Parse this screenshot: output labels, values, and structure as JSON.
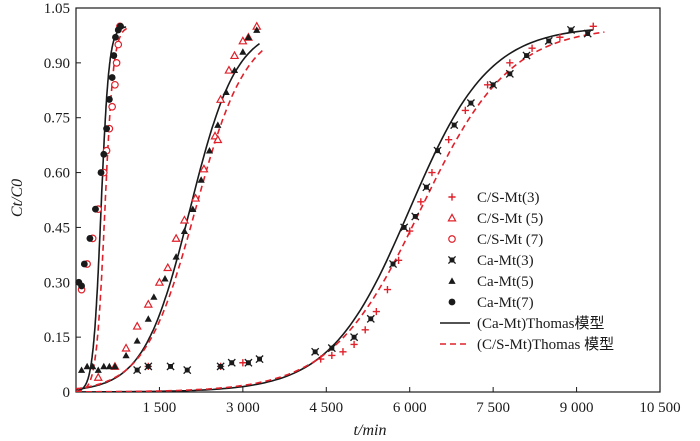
{
  "chart_data": {
    "type": "scatter",
    "xlabel": "t/min",
    "ylabel": "Ct/C0",
    "xlim": [
      0,
      10500
    ],
    "ylim": [
      0,
      1.05
    ],
    "x_ticks": [
      1500,
      3000,
      4500,
      6000,
      7500,
      9000,
      10500
    ],
    "x_tick_labels": [
      "1 500",
      "3 000",
      "4 500",
      "6 000",
      "7 500",
      "9 000",
      "10 500"
    ],
    "y_ticks": [
      0,
      0.15,
      0.3,
      0.45,
      0.6,
      0.75,
      0.9,
      1.05
    ],
    "y_tick_labels": [
      "0",
      "0.15",
      "0.30",
      "0.45",
      "0.60",
      "0.75",
      "0.90",
      "1.05"
    ],
    "legend_position": "right",
    "series": [
      {
        "name": "C/S-Mt(3)",
        "marker": "plus",
        "color": "#e0202a",
        "points": [
          [
            1300,
            0.07
          ],
          [
            2600,
            0.07
          ],
          [
            3000,
            0.08
          ],
          [
            4400,
            0.09
          ],
          [
            4600,
            0.1
          ],
          [
            4800,
            0.11
          ],
          [
            5000,
            0.13
          ],
          [
            5200,
            0.17
          ],
          [
            5400,
            0.22
          ],
          [
            5600,
            0.28
          ],
          [
            5800,
            0.36
          ],
          [
            6000,
            0.44
          ],
          [
            6200,
            0.52
          ],
          [
            6400,
            0.6
          ],
          [
            6700,
            0.69
          ],
          [
            7000,
            0.77
          ],
          [
            7400,
            0.84
          ],
          [
            7800,
            0.9
          ],
          [
            8200,
            0.94
          ],
          [
            8700,
            0.97
          ],
          [
            9300,
            1.0
          ]
        ]
      },
      {
        "name": "C/S-Mt (5)",
        "marker": "triangle-open",
        "color": "#e0202a",
        "points": [
          [
            400,
            0.04
          ],
          [
            700,
            0.07
          ],
          [
            900,
            0.12
          ],
          [
            1100,
            0.18
          ],
          [
            1300,
            0.24
          ],
          [
            1500,
            0.3
          ],
          [
            1650,
            0.34
          ],
          [
            1800,
            0.42
          ],
          [
            1950,
            0.47
          ],
          [
            2150,
            0.53
          ],
          [
            2300,
            0.61
          ],
          [
            2500,
            0.7
          ],
          [
            2550,
            0.69
          ],
          [
            2600,
            0.8
          ],
          [
            2750,
            0.88
          ],
          [
            2850,
            0.92
          ],
          [
            3000,
            0.96
          ],
          [
            3100,
            0.97
          ],
          [
            3250,
            1.0
          ]
        ]
      },
      {
        "name": "C/S-Mt (7)",
        "marker": "circle-open",
        "color": "#e0202a",
        "points": [
          [
            100,
            0.28
          ],
          [
            200,
            0.35
          ],
          [
            300,
            0.42
          ],
          [
            400,
            0.5
          ],
          [
            500,
            0.6
          ],
          [
            550,
            0.66
          ],
          [
            600,
            0.72
          ],
          [
            650,
            0.78
          ],
          [
            700,
            0.84
          ],
          [
            730,
            0.9
          ],
          [
            760,
            0.95
          ],
          [
            790,
            1.0
          ]
        ]
      },
      {
        "name": "Ca-Mt(3)",
        "marker": "x-square",
        "color": "#1a1a1a",
        "points": [
          [
            1100,
            0.06
          ],
          [
            1300,
            0.07
          ],
          [
            1700,
            0.07
          ],
          [
            2000,
            0.06
          ],
          [
            2600,
            0.07
          ],
          [
            2800,
            0.08
          ],
          [
            3100,
            0.08
          ],
          [
            3300,
            0.09
          ],
          [
            4300,
            0.11
          ],
          [
            4600,
            0.12
          ],
          [
            5000,
            0.15
          ],
          [
            5300,
            0.2
          ],
          [
            5700,
            0.35
          ],
          [
            5900,
            0.45
          ],
          [
            6100,
            0.48
          ],
          [
            6300,
            0.56
          ],
          [
            6500,
            0.66
          ],
          [
            6800,
            0.73
          ],
          [
            7100,
            0.79
          ],
          [
            7500,
            0.84
          ],
          [
            7800,
            0.87
          ],
          [
            8100,
            0.92
          ],
          [
            8500,
            0.96
          ],
          [
            8900,
            0.99
          ],
          [
            9200,
            0.98
          ]
        ]
      },
      {
        "name": "Ca-Mt(5)",
        "marker": "triangle-filled",
        "color": "#1a1a1a",
        "points": [
          [
            100,
            0.06
          ],
          [
            200,
            0.07
          ],
          [
            300,
            0.07
          ],
          [
            400,
            0.06
          ],
          [
            500,
            0.07
          ],
          [
            600,
            0.07
          ],
          [
            700,
            0.07
          ],
          [
            900,
            0.1
          ],
          [
            1100,
            0.14
          ],
          [
            1300,
            0.2
          ],
          [
            1400,
            0.26
          ],
          [
            1600,
            0.31
          ],
          [
            1800,
            0.37
          ],
          [
            1950,
            0.44
          ],
          [
            2100,
            0.5
          ],
          [
            2250,
            0.58
          ],
          [
            2400,
            0.66
          ],
          [
            2550,
            0.73
          ],
          [
            2700,
            0.82
          ],
          [
            2850,
            0.88
          ],
          [
            3000,
            0.93
          ],
          [
            3100,
            0.97
          ],
          [
            3250,
            0.99
          ]
        ]
      },
      {
        "name": "Ca-Mt(7)",
        "marker": "circle-filled",
        "color": "#1a1a1a",
        "points": [
          [
            50,
            0.3
          ],
          [
            100,
            0.29
          ],
          [
            150,
            0.35
          ],
          [
            250,
            0.42
          ],
          [
            350,
            0.5
          ],
          [
            450,
            0.6
          ],
          [
            500,
            0.65
          ],
          [
            550,
            0.72
          ],
          [
            600,
            0.8
          ],
          [
            650,
            0.86
          ],
          [
            680,
            0.92
          ],
          [
            710,
            0.97
          ],
          [
            760,
            0.99
          ],
          [
            800,
            1.0
          ]
        ]
      }
    ],
    "fit_curves": [
      {
        "name": "(Ca-Mt)Thomas模型",
        "style": "solid",
        "color": "#1a1a1a",
        "model": "thomas",
        "params": [
          [
            0.014,
            450
          ],
          [
            0.0024,
            2050
          ],
          [
            0.0014,
            6000
          ]
        ],
        "x_ranges": [
          [
            0,
            900
          ],
          [
            0,
            3300
          ],
          [
            0,
            9300
          ]
        ]
      },
      {
        "name": "(C/S-Mt)Thomas 模型",
        "style": "dashed",
        "color": "#e0202a",
        "model": "thomas",
        "params": [
          [
            0.013,
            520
          ],
          [
            0.0022,
            2150
          ],
          [
            0.00125,
            6200
          ]
        ],
        "x_ranges": [
          [
            0,
            950
          ],
          [
            0,
            3350
          ],
          [
            0,
            9500
          ]
        ]
      }
    ]
  }
}
